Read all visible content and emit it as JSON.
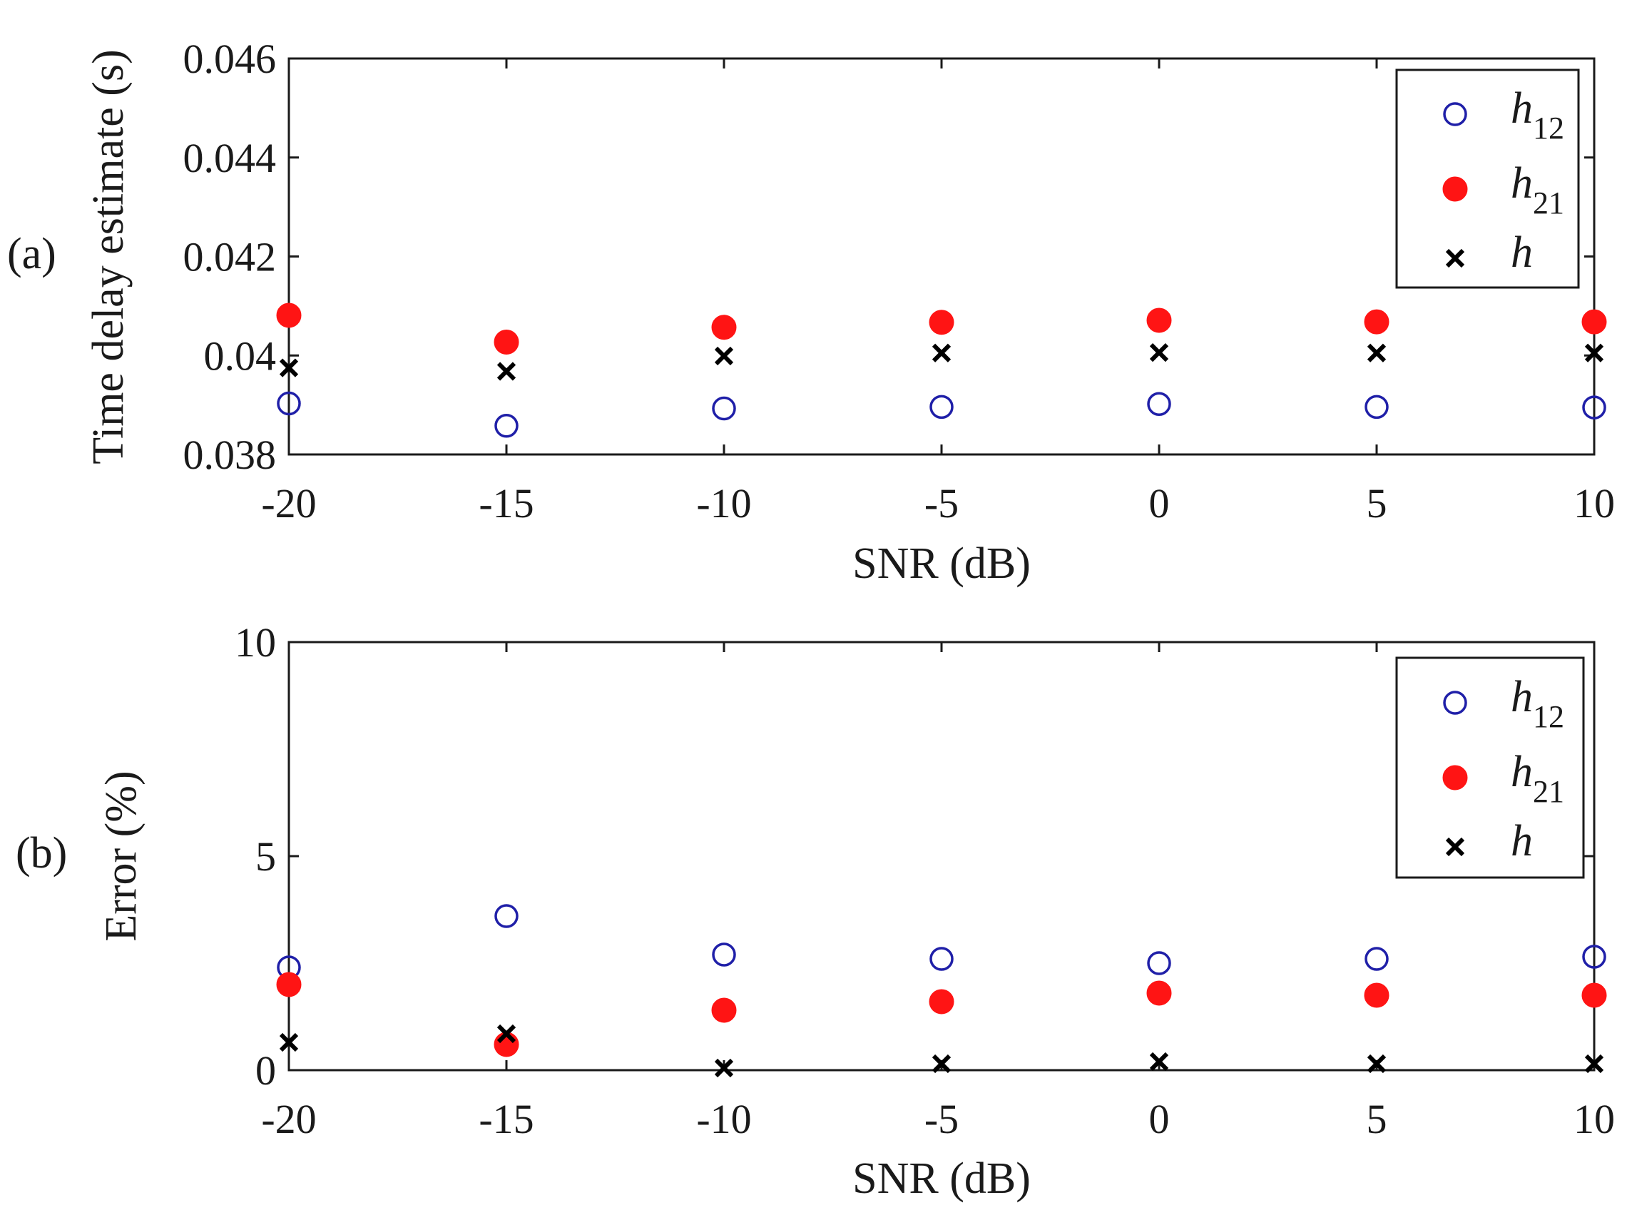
{
  "colors": {
    "h12": "#1f1fa8",
    "h21": "#ff1414",
    "h": "#000000",
    "axis": "#1a1a1a"
  },
  "chart_data": [
    {
      "type": "scatter",
      "panel_label": "(a)",
      "xlabel": "SNR (dB)",
      "ylabel": "Time delay estimate (s)",
      "xlim": [
        -20,
        10
      ],
      "ylim": [
        0.038,
        0.046
      ],
      "xticks": [
        -20,
        -15,
        -10,
        -5,
        0,
        5,
        10
      ],
      "xtick_labels": [
        "-20",
        "-15",
        "-10",
        "-5",
        "0",
        "5",
        "10"
      ],
      "yticks": [
        0.038,
        0.04,
        0.042,
        0.044,
        0.046
      ],
      "ytick_labels": [
        "0.038",
        "0.04",
        "0.042",
        "0.044",
        "0.046"
      ],
      "legend_position": "top-right",
      "x": [
        -20,
        -15,
        -10,
        -5,
        0,
        5,
        10
      ],
      "series": [
        {
          "name": "h12",
          "base": "h",
          "sub": "12",
          "marker": "open-circle",
          "values": [
            0.03903,
            0.03858,
            0.03893,
            0.03896,
            0.03902,
            0.03896,
            0.03895
          ]
        },
        {
          "name": "h21",
          "base": "h",
          "sub": "21",
          "marker": "filled-circle",
          "values": [
            0.04081,
            0.04027,
            0.04057,
            0.04067,
            0.04071,
            0.04068,
            0.04068
          ]
        },
        {
          "name": "h",
          "base": "h",
          "sub": "",
          "marker": "x",
          "values": [
            0.03975,
            0.03968,
            0.03999,
            0.04005,
            0.04006,
            0.04005,
            0.04005
          ]
        }
      ]
    },
    {
      "type": "scatter",
      "panel_label": "(b)",
      "xlabel": "SNR (dB)",
      "ylabel": "Error (%)",
      "xlim": [
        -20,
        10
      ],
      "ylim": [
        0,
        10
      ],
      "xticks": [
        -20,
        -15,
        -10,
        -5,
        0,
        5,
        10
      ],
      "xtick_labels": [
        "-20",
        "-15",
        "-10",
        "-5",
        "0",
        "5",
        "10"
      ],
      "yticks": [
        0,
        5,
        10
      ],
      "ytick_labels": [
        "0",
        "5",
        "10"
      ],
      "legend_position": "top-right",
      "x": [
        -20,
        -15,
        -10,
        -5,
        0,
        5,
        10
      ],
      "series": [
        {
          "name": "h12",
          "base": "h",
          "sub": "12",
          "marker": "open-circle",
          "values": [
            2.4,
            3.6,
            2.7,
            2.6,
            2.5,
            2.6,
            2.65
          ]
        },
        {
          "name": "h21",
          "base": "h",
          "sub": "21",
          "marker": "filled-circle",
          "values": [
            2.0,
            0.6,
            1.4,
            1.6,
            1.8,
            1.75,
            1.75
          ]
        },
        {
          "name": "h",
          "base": "h",
          "sub": "",
          "marker": "x",
          "values": [
            0.65,
            0.85,
            0.05,
            0.15,
            0.2,
            0.15,
            0.15
          ]
        }
      ]
    }
  ]
}
